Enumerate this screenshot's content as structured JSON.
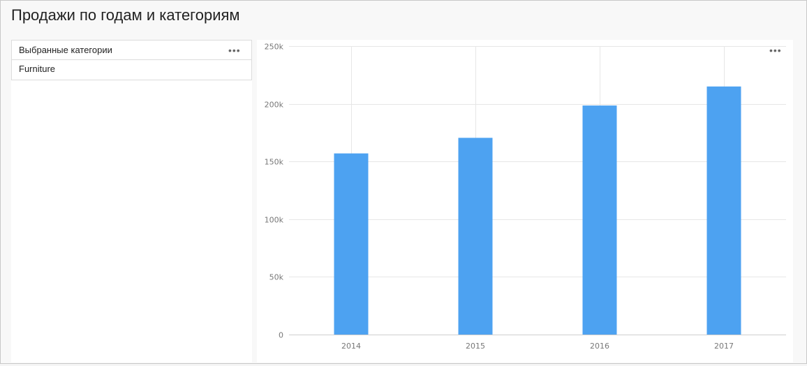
{
  "page": {
    "title": "Продажи по годам и категориям"
  },
  "selector": {
    "label": "Выбранные категории",
    "selected_value": "Furniture",
    "menu_icon": "more-horizontal-icon"
  },
  "chart_menu_icon": "more-horizontal-icon",
  "colors": {
    "bar": "#4da2f1",
    "grid": "#e6e6e6",
    "axis_text": "#777777"
  },
  "chart_data": {
    "type": "bar",
    "categories": [
      "2014",
      "2015",
      "2016",
      "2017"
    ],
    "values": [
      157000,
      170500,
      198500,
      215000
    ],
    "ylim": [
      0,
      250000
    ],
    "yticks": [
      0,
      50000,
      100000,
      150000,
      200000,
      250000
    ],
    "ytick_labels": [
      "0",
      "50k",
      "100k",
      "150k",
      "200k",
      "250k"
    ],
    "grid": true,
    "title": "",
    "xlabel": "",
    "ylabel": ""
  }
}
